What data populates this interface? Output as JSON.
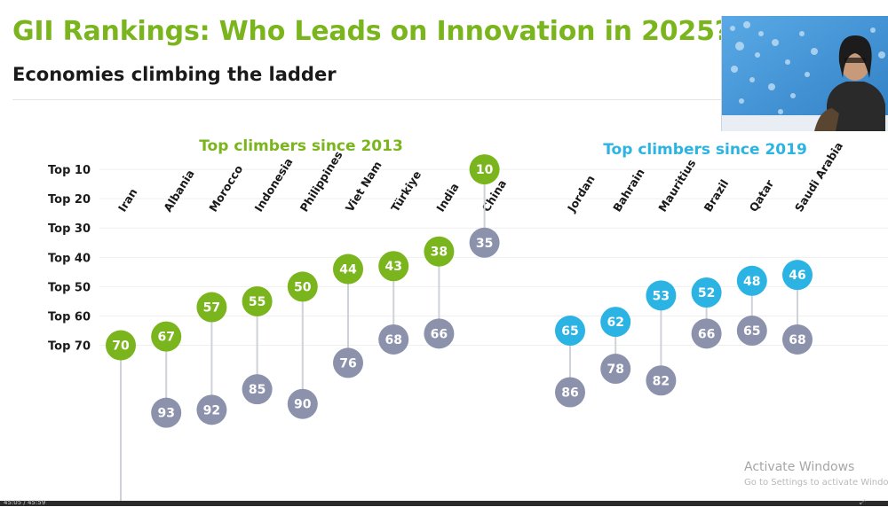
{
  "slide": {
    "title": "GII Rankings: Who Leads on Innovation in 2025?",
    "subtitle": "Economies climbing the ladder"
  },
  "colors": {
    "title_green": "#7ab51d",
    "group_2013": "#7ab51d",
    "group_2019": "#2bb3e3",
    "baseline": "#8c92ac",
    "connector": "#cfd2d8"
  },
  "chart_data": {
    "type": "dumbbell",
    "y_axis": {
      "labels": [
        "Top 10",
        "Top 20",
        "Top 30",
        "Top 40",
        "Top 50",
        "Top 60",
        "Top 70"
      ],
      "values": [
        10,
        20,
        30,
        40,
        50,
        60,
        70
      ],
      "direction": "rank (1 at top)",
      "range": [
        0,
        93
      ]
    },
    "groups": [
      {
        "title": "Top climbers since 2013",
        "color_key": "group_2013",
        "countries": [
          {
            "name": "Iran",
            "from": null,
            "to": 70
          },
          {
            "name": "Albania",
            "from": 93,
            "to": 67
          },
          {
            "name": "Morocco",
            "from": 92,
            "to": 57
          },
          {
            "name": "Indonesia",
            "from": 85,
            "to": 55
          },
          {
            "name": "Philippines",
            "from": 90,
            "to": 50
          },
          {
            "name": "Viet Nam",
            "from": 76,
            "to": 44
          },
          {
            "name": "Türkiye",
            "from": 68,
            "to": 43
          },
          {
            "name": "India",
            "from": 66,
            "to": 38
          },
          {
            "name": "China",
            "from": 35,
            "to": 10
          }
        ]
      },
      {
        "title": "Top climbers since 2019",
        "color_key": "group_2019",
        "countries": [
          {
            "name": "Jordan",
            "from": 86,
            "to": 65
          },
          {
            "name": "Bahrain",
            "from": 78,
            "to": 62
          },
          {
            "name": "Mauritius",
            "from": 82,
            "to": 53
          },
          {
            "name": "Brazil",
            "from": 66,
            "to": 52
          },
          {
            "name": "Qatar",
            "from": 65,
            "to": 48
          },
          {
            "name": "Saudi Arabia",
            "from": 68,
            "to": 46
          }
        ]
      }
    ]
  },
  "webcam": {
    "icon": "presenter-video-icon"
  },
  "watermark": {
    "line1": "Activate Windows",
    "line2": "Go to Settings to activate Windows."
  },
  "player": {
    "time": "45:05 / 45:59",
    "icon": "fullscreen-icon"
  }
}
